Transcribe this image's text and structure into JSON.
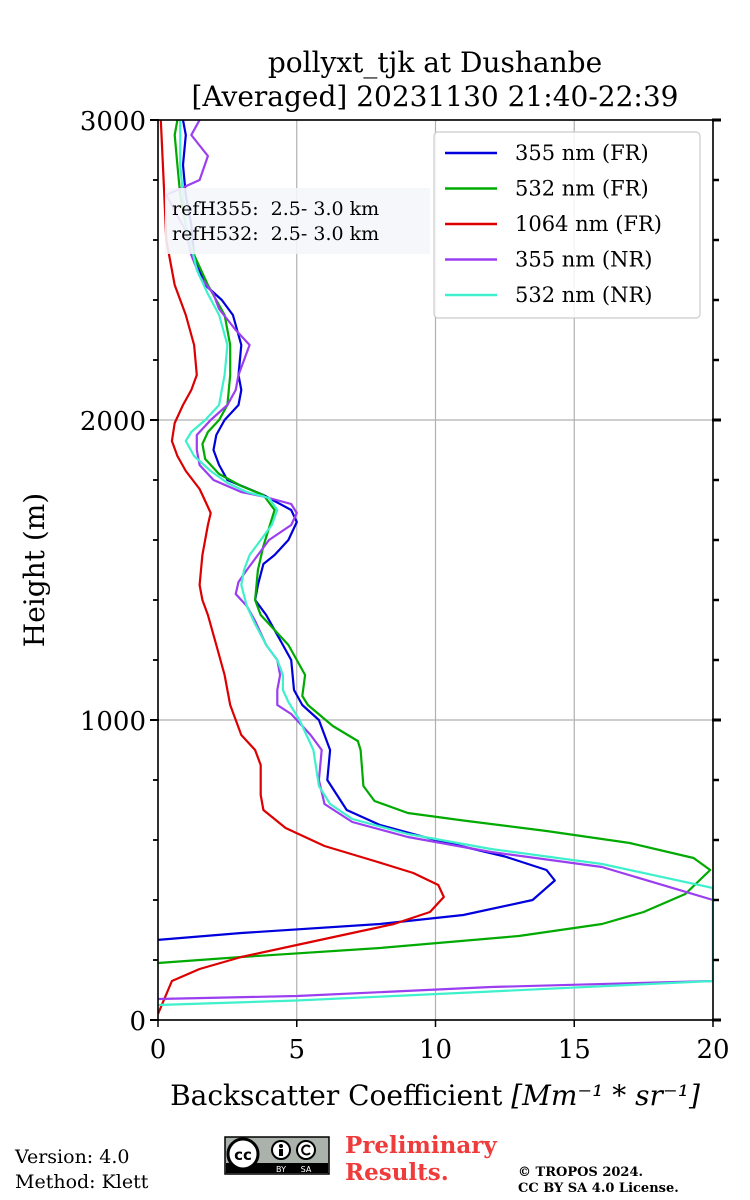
{
  "chart_data": {
    "type": "line",
    "title": "pollyxt_tjk at Dushanbe",
    "subtitle": "[Averaged] 20231130 21:40-22:39",
    "xlabel": "Backscatter Coefficient",
    "xlabel_unit": "[Mm⁻¹ * sr⁻¹]",
    "ylabel": "Height (m)",
    "xlim": [
      0,
      20
    ],
    "ylim": [
      0,
      3000
    ],
    "x_ticks": [
      0,
      5,
      10,
      15,
      20
    ],
    "y_ticks": [
      0,
      1000,
      2000,
      3000
    ],
    "grid": true,
    "legend_position": "top-right",
    "annotation": [
      "refH355:  2.5- 3.0 km",
      "refH532:  2.5- 3.0 km"
    ],
    "series": [
      {
        "name": "355 nm (FR)",
        "color": "#0000dd",
        "points": [
          [
            0,
            267
          ],
          [
            3,
            290
          ],
          [
            8,
            320
          ],
          [
            11,
            350
          ],
          [
            13.5,
            400
          ],
          [
            14.3,
            465
          ],
          [
            14,
            500
          ],
          [
            12.5,
            545
          ],
          [
            10,
            600
          ],
          [
            8,
            650
          ],
          [
            6.8,
            700
          ],
          [
            6.1,
            800
          ],
          [
            6.2,
            900
          ],
          [
            5.8,
            1000
          ],
          [
            5.2,
            1050
          ],
          [
            4.9,
            1100
          ],
          [
            4.8,
            1200
          ],
          [
            4.5,
            1250
          ],
          [
            3.9,
            1350
          ],
          [
            3.5,
            1400
          ],
          [
            3.6,
            1450
          ],
          [
            3.8,
            1520
          ],
          [
            4.2,
            1550
          ],
          [
            4.7,
            1600
          ],
          [
            5,
            1660
          ],
          [
            4.8,
            1700
          ],
          [
            3.8,
            1750
          ],
          [
            2.5,
            1800
          ],
          [
            2.2,
            1850
          ],
          [
            2,
            1900
          ],
          [
            2.1,
            1950
          ],
          [
            2.4,
            2000
          ],
          [
            2.9,
            2050
          ],
          [
            3,
            2100
          ],
          [
            2.9,
            2150
          ],
          [
            3,
            2250
          ],
          [
            2.7,
            2350
          ],
          [
            2.3,
            2400
          ],
          [
            1.7,
            2450
          ],
          [
            1.3,
            2550
          ],
          [
            1.2,
            2650
          ],
          [
            1,
            2750
          ],
          [
            0.9,
            2850
          ],
          [
            1,
            2950
          ],
          [
            0.9,
            3000
          ]
        ]
      },
      {
        "name": "532 nm (FR)",
        "color": "#00aa00",
        "points": [
          [
            0,
            190
          ],
          [
            3,
            210
          ],
          [
            8,
            240
          ],
          [
            13,
            280
          ],
          [
            16,
            320
          ],
          [
            17.5,
            360
          ],
          [
            19,
            420
          ],
          [
            19.9,
            500
          ],
          [
            19.3,
            540
          ],
          [
            17,
            590
          ],
          [
            14,
            630
          ],
          [
            11,
            665
          ],
          [
            9,
            690
          ],
          [
            7.8,
            730
          ],
          [
            7.4,
            780
          ],
          [
            7.3,
            900
          ],
          [
            7.2,
            930
          ],
          [
            6.3,
            980
          ],
          [
            5.4,
            1050
          ],
          [
            5.2,
            1080
          ],
          [
            5.3,
            1150
          ],
          [
            5,
            1200
          ],
          [
            4.7,
            1250
          ],
          [
            4.2,
            1300
          ],
          [
            3.7,
            1350
          ],
          [
            3.5,
            1400
          ],
          [
            3.6,
            1500
          ],
          [
            3.8,
            1580
          ],
          [
            4.2,
            1700
          ],
          [
            3.8,
            1750
          ],
          [
            3,
            1780
          ],
          [
            2.2,
            1820
          ],
          [
            1.7,
            1870
          ],
          [
            1.6,
            1920
          ],
          [
            1.8,
            1960
          ],
          [
            2.2,
            2000
          ],
          [
            2.5,
            2050
          ],
          [
            2.6,
            2150
          ],
          [
            2.6,
            2250
          ],
          [
            2.4,
            2350
          ],
          [
            1.8,
            2450
          ],
          [
            1.3,
            2550
          ],
          [
            1,
            2650
          ],
          [
            0.8,
            2750
          ],
          [
            0.7,
            2850
          ],
          [
            0.6,
            2950
          ],
          [
            0.7,
            3000
          ]
        ]
      },
      {
        "name": "1064 nm (FR)",
        "color": "#dd0000",
        "points": [
          [
            0,
            20
          ],
          [
            0.5,
            130
          ],
          [
            1.5,
            170
          ],
          [
            3,
            210
          ],
          [
            5,
            250
          ],
          [
            7,
            290
          ],
          [
            8.5,
            320
          ],
          [
            9.8,
            360
          ],
          [
            10.3,
            410
          ],
          [
            10.1,
            450
          ],
          [
            9.2,
            490
          ],
          [
            7.8,
            530
          ],
          [
            6,
            580
          ],
          [
            4.6,
            640
          ],
          [
            3.8,
            700
          ],
          [
            3.7,
            750
          ],
          [
            3.7,
            850
          ],
          [
            3.5,
            900
          ],
          [
            3,
            950
          ],
          [
            2.6,
            1050
          ],
          [
            2.4,
            1150
          ],
          [
            2.1,
            1250
          ],
          [
            1.8,
            1350
          ],
          [
            1.6,
            1400
          ],
          [
            1.5,
            1450
          ],
          [
            1.6,
            1550
          ],
          [
            1.8,
            1650
          ],
          [
            1.9,
            1690
          ],
          [
            1.7,
            1730
          ],
          [
            1.5,
            1770
          ],
          [
            1,
            1830
          ],
          [
            0.7,
            1880
          ],
          [
            0.5,
            1930
          ],
          [
            0.6,
            1990
          ],
          [
            0.9,
            2050
          ],
          [
            1.2,
            2100
          ],
          [
            1.4,
            2150
          ],
          [
            1.3,
            2250
          ],
          [
            1,
            2350
          ],
          [
            0.6,
            2450
          ],
          [
            0.3,
            2600
          ],
          [
            0.2,
            2800
          ],
          [
            0.1,
            3000
          ]
        ]
      },
      {
        "name": "355 nm (NR)",
        "color": "#9b3ef0",
        "points": [
          [
            0,
            70
          ],
          [
            5,
            80
          ],
          [
            12,
            110
          ],
          [
            20,
            130
          ],
          [
            20,
            400
          ],
          [
            16,
            510
          ],
          [
            12,
            560
          ],
          [
            9,
            610
          ],
          [
            7,
            660
          ],
          [
            6,
            720
          ],
          [
            5.9,
            760
          ],
          [
            5.8,
            800
          ],
          [
            5.9,
            900
          ],
          [
            5.5,
            950
          ],
          [
            5.2,
            980
          ],
          [
            4.8,
            1020
          ],
          [
            4.3,
            1050
          ],
          [
            4.3,
            1100
          ],
          [
            4.4,
            1150
          ],
          [
            4.3,
            1200
          ],
          [
            3.9,
            1250
          ],
          [
            3.5,
            1330
          ],
          [
            3.2,
            1380
          ],
          [
            2.8,
            1420
          ],
          [
            2.9,
            1460
          ],
          [
            3.2,
            1500
          ],
          [
            3.6,
            1550
          ],
          [
            4,
            1600
          ],
          [
            4.8,
            1650
          ],
          [
            5,
            1690
          ],
          [
            4.8,
            1720
          ],
          [
            3.8,
            1745
          ],
          [
            3,
            1760
          ],
          [
            2,
            1800
          ],
          [
            1.5,
            1850
          ],
          [
            1.4,
            1900
          ],
          [
            1.4,
            1950
          ],
          [
            1.9,
            2000
          ],
          [
            2.5,
            2050
          ],
          [
            2.8,
            2100
          ],
          [
            2.9,
            2150
          ],
          [
            3.3,
            2250
          ],
          [
            2.8,
            2300
          ],
          [
            2.2,
            2370
          ],
          [
            2,
            2420
          ],
          [
            1.5,
            2480
          ],
          [
            1.2,
            2550
          ],
          [
            1,
            2630
          ],
          [
            0.3,
            2750
          ],
          [
            1.5,
            2800
          ],
          [
            1.8,
            2880
          ],
          [
            1.2,
            2950
          ],
          [
            1.5,
            3000
          ]
        ]
      },
      {
        "name": "532 nm (NR)",
        "color": "#3ff0cc",
        "points": [
          [
            0,
            50
          ],
          [
            5,
            65
          ],
          [
            12,
            95
          ],
          [
            20,
            130
          ],
          [
            20,
            440
          ],
          [
            16,
            520
          ],
          [
            12,
            570
          ],
          [
            9,
            620
          ],
          [
            7,
            670
          ],
          [
            6.2,
            720
          ],
          [
            5.8,
            780
          ],
          [
            5.6,
            900
          ],
          [
            5.1,
            1000
          ],
          [
            4.7,
            1060
          ],
          [
            4.5,
            1100
          ],
          [
            4.5,
            1150
          ],
          [
            4.3,
            1200
          ],
          [
            3.9,
            1250
          ],
          [
            3.5,
            1320
          ],
          [
            3.2,
            1380
          ],
          [
            3,
            1450
          ],
          [
            3.1,
            1500
          ],
          [
            3.3,
            1550
          ],
          [
            3.7,
            1600
          ],
          [
            4.1,
            1650
          ],
          [
            4.3,
            1700
          ],
          [
            4,
            1740
          ],
          [
            3.2,
            1760
          ],
          [
            2.5,
            1790
          ],
          [
            1.9,
            1830
          ],
          [
            1.3,
            1880
          ],
          [
            1,
            1930
          ],
          [
            1.2,
            1960
          ],
          [
            1.7,
            2000
          ],
          [
            2.2,
            2050
          ],
          [
            2.3,
            2100
          ],
          [
            2.4,
            2150
          ],
          [
            2.5,
            2250
          ],
          [
            2.2,
            2350
          ],
          [
            1.8,
            2420
          ],
          [
            1.4,
            2500
          ],
          [
            1.2,
            2580
          ],
          [
            1,
            2650
          ],
          [
            0.9,
            2750
          ],
          [
            0.8,
            2850
          ],
          [
            0.8,
            2950
          ],
          [
            0.8,
            3000
          ]
        ]
      }
    ]
  },
  "footer": {
    "version": "Version: 4.0",
    "method": "Method: Klett",
    "prelim_line1": "Preliminary",
    "prelim_line2": "Results.",
    "copyright_line1": "© TROPOS 2024.",
    "copyright_line2": "CC BY SA 4.0 License.",
    "badge_cc": "cc",
    "badge_by": "BY",
    "badge_sa": "SA"
  }
}
